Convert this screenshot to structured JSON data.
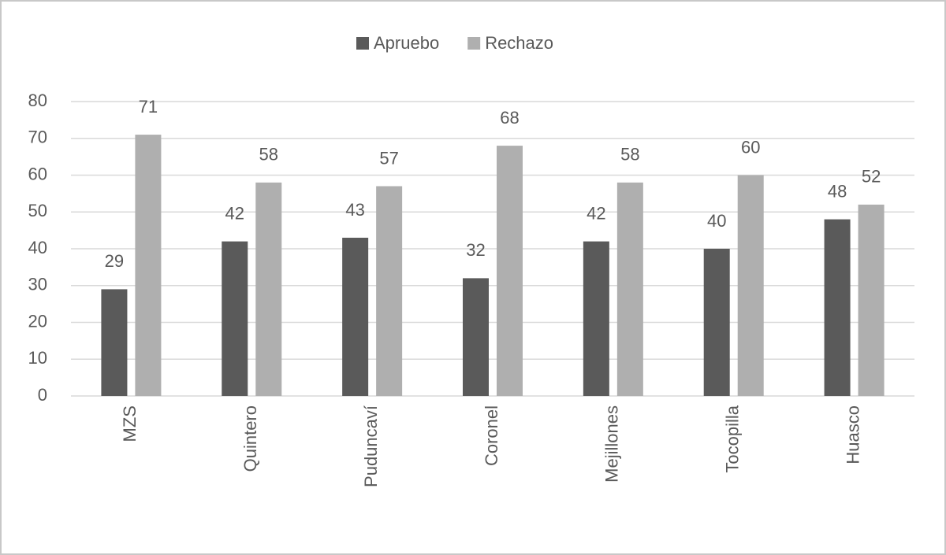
{
  "chart_data": {
    "type": "bar",
    "categories": [
      "MZS",
      "Quintero",
      "Puduncaví",
      "Coronel",
      "Mejillones",
      "Tocopilla",
      "Huasco"
    ],
    "series": [
      {
        "name": "Apruebo",
        "color": "#5a5a5a",
        "values": [
          29,
          42,
          43,
          32,
          42,
          40,
          48
        ]
      },
      {
        "name": "Rechazo",
        "color": "#afafaf",
        "values": [
          71,
          58,
          57,
          68,
          58,
          60,
          52
        ]
      }
    ],
    "ylim": [
      0,
      80
    ],
    "yticks": [
      0,
      10,
      20,
      30,
      40,
      50,
      60,
      70,
      80
    ],
    "grid": true,
    "legend": "top"
  }
}
